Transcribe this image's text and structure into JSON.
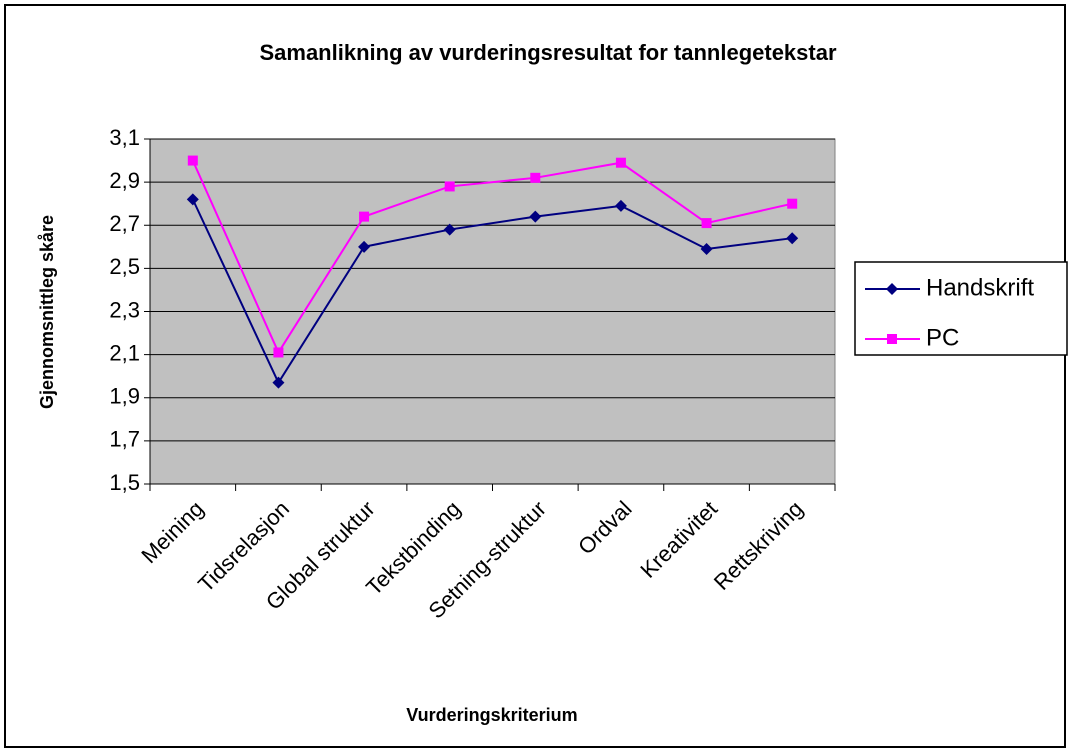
{
  "chart_data": {
    "type": "line",
    "title": "Samanlikning av vurderingsresultat for tannlegetekstar",
    "x_label": "Vurderingskriterium",
    "y_label": "Gjennomsnittleg skåre",
    "categories": [
      "Meining",
      "Tidsrelasjon",
      "Global struktur",
      "Tekstbinding",
      "Setning-struktur",
      "Ordval",
      "Kreativitet",
      "Rettskriving"
    ],
    "series": [
      {
        "name": "Handskrift",
        "color": "#000080",
        "marker": "diamond",
        "values": [
          2.82,
          1.97,
          2.6,
          2.68,
          2.74,
          2.79,
          2.59,
          2.64
        ]
      },
      {
        "name": "PC",
        "color": "#ff00ff",
        "marker": "square",
        "values": [
          3.0,
          2.11,
          2.74,
          2.88,
          2.92,
          2.99,
          2.71,
          2.8
        ]
      }
    ],
    "ylim": [
      1.5,
      3.1
    ],
    "yticks": [
      {
        "value": 1.5,
        "label": "1,5"
      },
      {
        "value": 1.7,
        "label": "1,7"
      },
      {
        "value": 1.9,
        "label": "1,9"
      },
      {
        "value": 2.1,
        "label": "2,1"
      },
      {
        "value": 2.3,
        "label": "2,3"
      },
      {
        "value": 2.5,
        "label": "2,5"
      },
      {
        "value": 2.7,
        "label": "2,7"
      },
      {
        "value": 2.9,
        "label": "2,9"
      },
      {
        "value": 3.1,
        "label": "3,1"
      }
    ],
    "grid": true,
    "plot_background": "#c0c0c0",
    "legend": "right"
  }
}
